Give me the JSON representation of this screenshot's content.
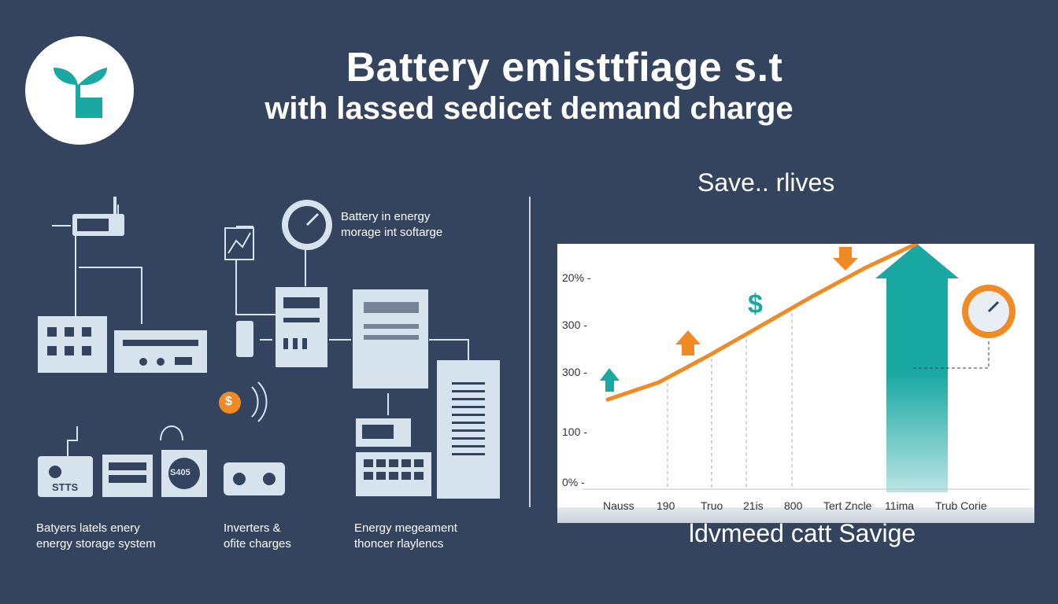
{
  "header": {
    "title_line1": "Battery emisttfiage s.t",
    "title_line2": "with lassed sedicet demand charge"
  },
  "logo": {
    "icon": "sprout-leaf-icon",
    "color": "#1aa8a3"
  },
  "diagram": {
    "gauge_label_line1": "Battery in energy",
    "gauge_label_line2": "morage int softarge",
    "battery_label": "STTS",
    "display_label": "S405",
    "coin_symbol": "$",
    "captions": [
      {
        "line1": "Batyers latels enery",
        "line2": "energy storage system"
      },
      {
        "line1": "Inverters &",
        "line2": "ofite charges"
      },
      {
        "line1": "Energy megeament",
        "line2": "thoncer rlaylencs"
      }
    ],
    "icon_color": "#d7e3ec",
    "accent_orange": "#f08a24"
  },
  "savings": {
    "heading": "Save.. rlives",
    "caption": "ldvmeed catt Savige"
  },
  "chart_data": {
    "type": "line",
    "y_tick_labels": [
      "20%",
      "300",
      "300",
      "100",
      "0%"
    ],
    "x_tick_labels": [
      "Nauss",
      "190",
      "Truo",
      "21is",
      "800",
      "Tert Zncle",
      "11ima",
      "Trub Corie"
    ],
    "series": [
      {
        "values": [
          0.1,
          0.2,
          0.36,
          0.53,
          0.7,
          0.86,
          1.0
        ],
        "color": "#f08a24"
      }
    ],
    "annotations": [
      "$"
    ],
    "colors": {
      "up_arrow": "#1aa8a3",
      "orange": "#f08a24"
    },
    "grid": "vertical dashed"
  }
}
